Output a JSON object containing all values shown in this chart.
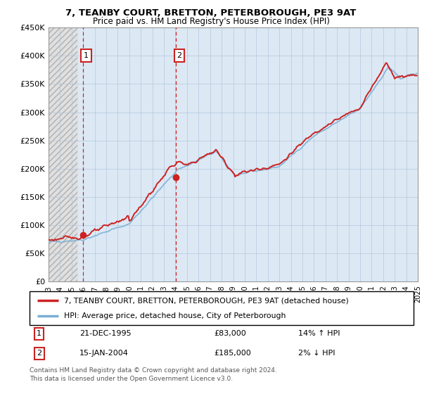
{
  "title1": "7, TEANBY COURT, BRETTON, PETERBOROUGH, PE3 9AT",
  "title2": "Price paid vs. HM Land Registry's House Price Index (HPI)",
  "ylabel_ticks": [
    "£0",
    "£50K",
    "£100K",
    "£150K",
    "£200K",
    "£250K",
    "£300K",
    "£350K",
    "£400K",
    "£450K"
  ],
  "ylim": [
    0,
    450000
  ],
  "yticks": [
    0,
    50000,
    100000,
    150000,
    200000,
    250000,
    300000,
    350000,
    400000,
    450000
  ],
  "xmin_year": 1993,
  "xmax_year": 2025,
  "xticks": [
    1993,
    1994,
    1995,
    1996,
    1997,
    1998,
    1999,
    2000,
    2001,
    2002,
    2003,
    2004,
    2005,
    2006,
    2007,
    2008,
    2009,
    2010,
    2011,
    2012,
    2013,
    2014,
    2015,
    2016,
    2017,
    2018,
    2019,
    2020,
    2021,
    2022,
    2023,
    2024,
    2025
  ],
  "hatch_end": 1995.5,
  "purchase1_x": 1995.97,
  "purchase1_y": 83000,
  "purchase2_x": 2004.04,
  "purchase2_y": 185000,
  "legend_line1": "7, TEANBY COURT, BRETTON, PETERBOROUGH, PE3 9AT (detached house)",
  "legend_line2": "HPI: Average price, detached house, City of Peterborough",
  "table_rows": [
    {
      "num": "1",
      "date": "21-DEC-1995",
      "price": "£83,000",
      "hpi": "14% ↑ HPI"
    },
    {
      "num": "2",
      "date": "15-JAN-2004",
      "price": "£185,000",
      "hpi": "2% ↓ HPI"
    }
  ],
  "footer": "Contains HM Land Registry data © Crown copyright and database right 2024.\nThis data is licensed under the Open Government Licence v3.0.",
  "hpi_color": "#7bafd4",
  "price_color": "#cc2222",
  "bg_chart": "#dce9f5",
  "grid_color": "#b0c4d8",
  "vline_color": "#cc2222"
}
